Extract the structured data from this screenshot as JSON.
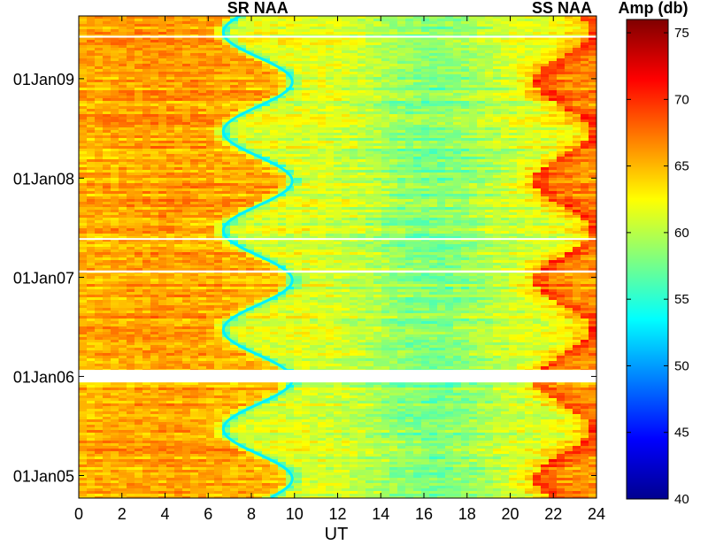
{
  "chart_data": {
    "type": "heatmap",
    "title": "",
    "xlabel": "UT",
    "ylabel": "",
    "xlim": [
      0,
      24
    ],
    "x_ticks": [
      0,
      2,
      4,
      6,
      8,
      10,
      12,
      14,
      16,
      18,
      20,
      22,
      24
    ],
    "ylim": [
      "2004-10-10",
      "2009-08-20"
    ],
    "y_ticks": [
      "01Jan05",
      "01Jan06",
      "01Jan07",
      "01Jan08",
      "01Jan09"
    ],
    "y_tick_dates": [
      "2005-01-01",
      "2006-01-01",
      "2007-01-01",
      "2008-01-01",
      "2009-01-01"
    ],
    "annotations": [
      {
        "text": "SR NAA",
        "x": 8.3
      },
      {
        "text": "SS NAA",
        "x": 22.4
      }
    ],
    "colorbar": {
      "label": "Amp (db)",
      "min": 40,
      "max": 76,
      "ticks": [
        40,
        45,
        50,
        55,
        60,
        65,
        70,
        75
      ],
      "colormap": "jet"
    },
    "data_gaps": [
      {
        "from": "2005-12-10",
        "to": "2006-01-25"
      },
      {
        "from": "2007-01-18",
        "to": "2007-01-26"
      },
      {
        "from": "2007-05-20",
        "to": "2007-05-25"
      },
      {
        "from": "2009-06-01",
        "to": "2009-06-08"
      }
    ]
  }
}
